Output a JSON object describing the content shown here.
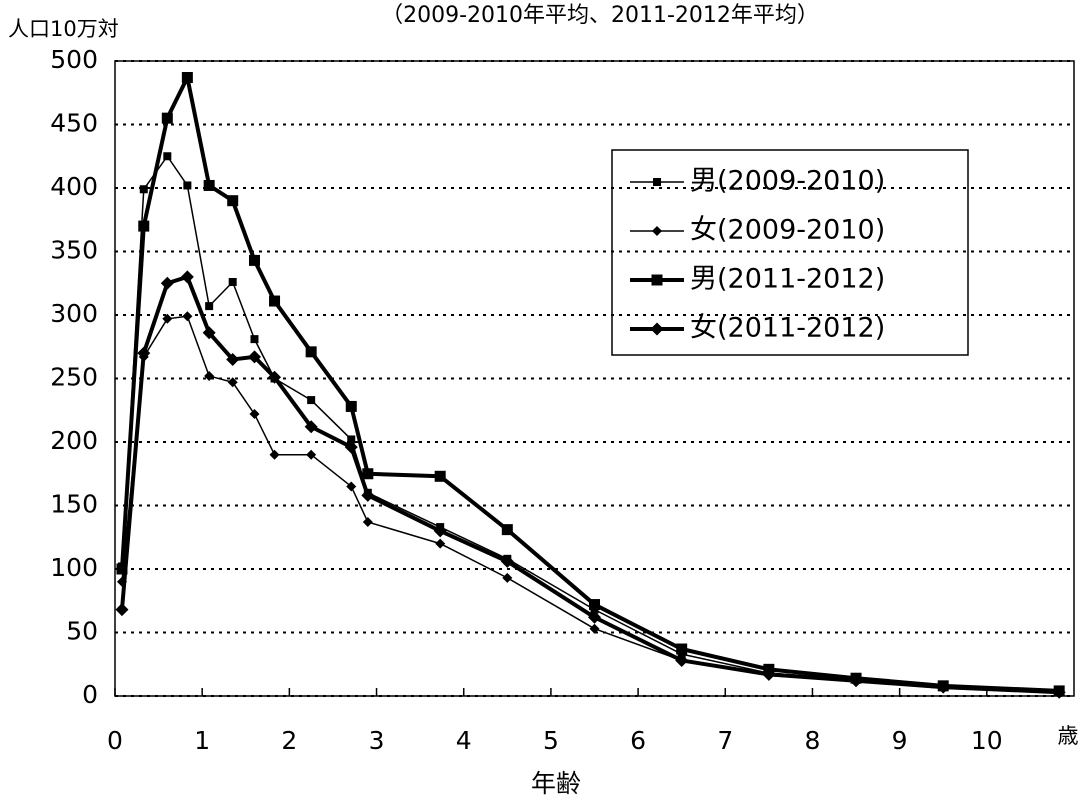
{
  "chart_data": {
    "type": "line",
    "title": "（2009-2010年平均、2011-2012年平均）",
    "y_label": "人口10万対",
    "x_label": "年齢",
    "x_unit": "歳",
    "x": [
      0.08,
      0.33,
      0.6,
      0.83,
      1.08,
      1.35,
      1.6,
      1.83,
      2.25,
      2.71,
      2.9,
      3.73,
      4.5,
      5.5,
      6.5,
      7.5,
      8.5,
      9.5,
      10.83
    ],
    "series": [
      {
        "name": "男(2009-2010)",
        "color": "#000000",
        "marker": "square",
        "line_width": 1.5,
        "values": [
          102,
          399,
          425,
          402,
          307,
          326,
          281,
          250,
          233,
          202,
          160,
          133,
          108,
          68,
          33,
          18,
          13,
          7,
          3
        ]
      },
      {
        "name": "女(2009-2010)",
        "color": "#000000",
        "marker": "diamond",
        "line_width": 1.5,
        "values": [
          90,
          267,
          297,
          299,
          252,
          247,
          222,
          190,
          190,
          165,
          137,
          120,
          93,
          53,
          28,
          16,
          12,
          6,
          3
        ]
      },
      {
        "name": "男(2011-2012)",
        "color": "#000000",
        "marker": "square",
        "line_width": 4,
        "values": [
          100,
          370,
          455,
          487,
          402,
          390,
          343,
          311,
          271,
          228,
          175,
          173,
          131,
          72,
          37,
          21,
          14,
          8,
          4
        ]
      },
      {
        "name": "女(2011-2012)",
        "color": "#000000",
        "marker": "diamond",
        "line_width": 4,
        "values": [
          68,
          270,
          325,
          330,
          286,
          265,
          267,
          251,
          212,
          196,
          158,
          130,
          106,
          62,
          28,
          17,
          12,
          7,
          3
        ]
      }
    ],
    "xlim": [
      0,
      11
    ],
    "xticks": [
      0,
      1,
      2,
      3,
      4,
      5,
      6,
      7,
      8,
      9,
      10
    ],
    "ylim": [
      0,
      500
    ],
    "yticks": [
      0,
      50,
      100,
      150,
      200,
      250,
      300,
      350,
      400,
      450,
      500
    ],
    "grid": true
  }
}
